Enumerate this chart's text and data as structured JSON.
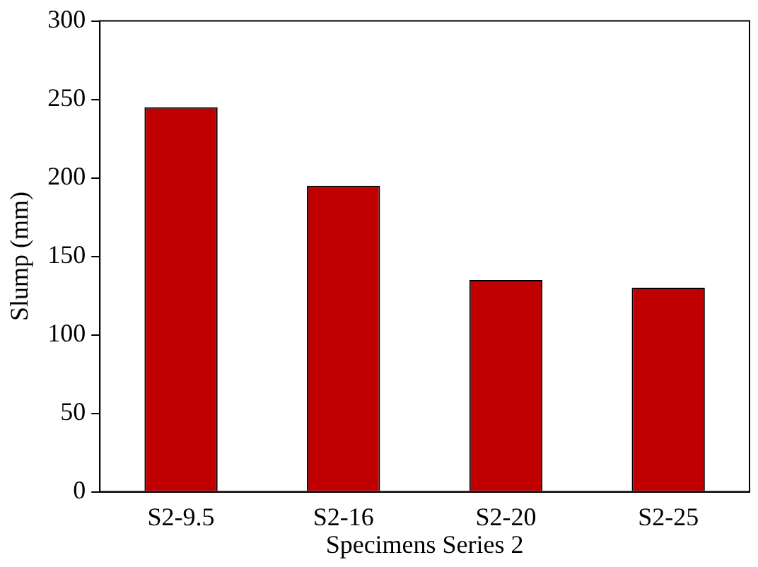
{
  "chart_data": {
    "type": "bar",
    "xlabel": "Specimens Series 2",
    "ylabel": "Slump (mm)",
    "categories": [
      "S2-9.5",
      "S2-16",
      "S2-20",
      "S2-25"
    ],
    "values": [
      245,
      195,
      135,
      130
    ],
    "color": "#c00000",
    "ylim": [
      0,
      300
    ],
    "yticks": [
      0,
      50,
      100,
      150,
      200,
      250,
      300
    ],
    "grid": false,
    "legend": false
  }
}
